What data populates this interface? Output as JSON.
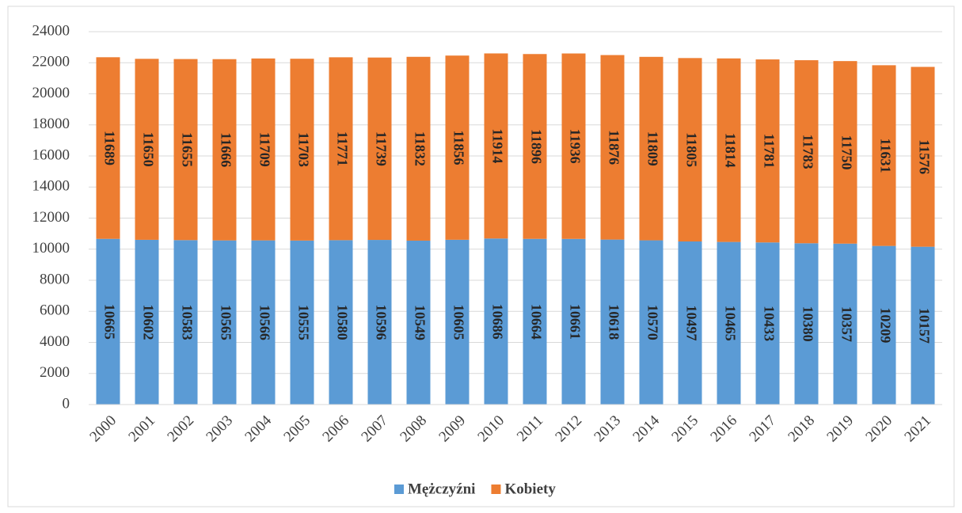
{
  "chart_data": {
    "type": "stacked_bar",
    "categories": [
      "2000",
      "2001",
      "2002",
      "2003",
      "2004",
      "2005",
      "2006",
      "2007",
      "2008",
      "2009",
      "2010",
      "2011",
      "2012",
      "2013",
      "2014",
      "2015",
      "2016",
      "2017",
      "2018",
      "2019",
      "2020",
      "2021"
    ],
    "series": [
      {
        "name": "Mężczyźni",
        "color": "#5b9bd5",
        "values": [
          10665,
          10602,
          10583,
          10565,
          10566,
          10555,
          10580,
          10596,
          10549,
          10605,
          10686,
          10664,
          10661,
          10618,
          10570,
          10497,
          10465,
          10433,
          10380,
          10357,
          10209,
          10157
        ]
      },
      {
        "name": "Kobiety",
        "color": "#ed7d31",
        "values": [
          11689,
          11650,
          11655,
          11666,
          11709,
          11703,
          11771,
          11739,
          11832,
          11856,
          11914,
          11896,
          11936,
          11876,
          11809,
          11805,
          11814,
          11781,
          11783,
          11750,
          11631,
          11576
        ]
      }
    ],
    "ylim": [
      0,
      24000
    ],
    "yticks": [
      0,
      2000,
      4000,
      6000,
      8000,
      10000,
      12000,
      14000,
      16000,
      18000,
      20000,
      22000,
      24000
    ],
    "grid": true,
    "legend": "bottom"
  }
}
